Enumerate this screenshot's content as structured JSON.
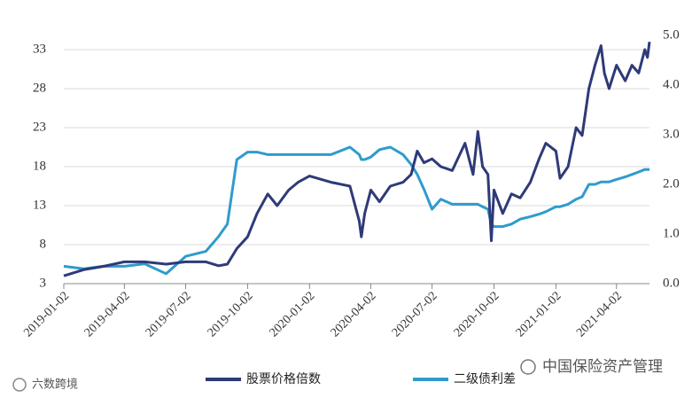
{
  "chart_data": {
    "type": "line",
    "x": [
      "2019-01-02",
      "2019-02-01",
      "2019-03-01",
      "2019-04-02",
      "2019-05-02",
      "2019-06-03",
      "2019-07-02",
      "2019-08-01",
      "2019-08-20",
      "2019-09-02",
      "2019-09-16",
      "2019-10-02",
      "2019-10-16",
      "2019-11-01",
      "2019-11-15",
      "2019-12-02",
      "2019-12-16",
      "2020-01-02",
      "2020-02-03",
      "2020-03-02",
      "2020-03-16",
      "2020-03-19",
      "2020-03-24",
      "2020-04-02",
      "2020-04-15",
      "2020-05-01",
      "2020-05-20",
      "2020-06-01",
      "2020-06-10",
      "2020-06-20",
      "2020-07-02",
      "2020-07-15",
      "2020-08-01",
      "2020-08-20",
      "2020-09-01",
      "2020-09-08",
      "2020-09-15",
      "2020-09-23",
      "2020-09-28",
      "2020-10-02",
      "2020-10-15",
      "2020-10-28",
      "2020-11-10",
      "2020-11-25",
      "2020-12-08",
      "2020-12-18",
      "2021-01-02",
      "2021-01-08",
      "2021-01-20",
      "2021-02-01",
      "2021-02-10",
      "2021-02-20",
      "2021-03-01",
      "2021-03-10",
      "2021-03-15",
      "2021-03-22",
      "2021-04-02",
      "2021-04-15",
      "2021-04-25",
      "2021-05-05",
      "2021-05-14",
      "2021-05-18",
      "2021-05-21"
    ],
    "series": [
      {
        "name": "股票价格倍数",
        "color": "#2e3a78",
        "values": [
          4,
          4.8,
          5.2,
          5.8,
          5.8,
          5.5,
          5.8,
          5.8,
          5.3,
          5.5,
          7.5,
          9,
          12,
          14.5,
          13,
          15,
          16,
          16.8,
          16,
          15.5,
          11,
          9,
          12,
          15,
          13.5,
          15.5,
          16,
          17,
          20,
          18.5,
          19,
          18,
          17.5,
          21,
          17,
          22.5,
          18,
          17,
          8.5,
          15,
          12,
          14.5,
          14,
          16,
          19,
          21,
          20,
          16.5,
          18,
          23,
          22,
          28,
          31,
          33.5,
          30,
          28,
          31,
          29,
          31,
          30,
          33,
          32,
          34
        ]
      },
      {
        "name": "二级债利差",
        "color": "#2f9bcc",
        "axis": "y2",
        "values": [
          0.35,
          0.3,
          0.35,
          0.35,
          0.4,
          0.2,
          0.55,
          0.65,
          0.95,
          1.2,
          2.5,
          2.65,
          2.65,
          2.6,
          2.6,
          2.6,
          2.6,
          2.6,
          2.6,
          2.75,
          2.6,
          2.5,
          2.5,
          2.55,
          2.7,
          2.75,
          2.6,
          2.4,
          2.2,
          1.9,
          1.5,
          1.7,
          1.6,
          1.6,
          1.6,
          1.6,
          1.55,
          1.5,
          1.2,
          1.15,
          1.15,
          1.2,
          1.3,
          1.35,
          1.4,
          1.45,
          1.55,
          1.55,
          1.6,
          1.7,
          1.75,
          2,
          2,
          2.05,
          2.05,
          2.05,
          2.1,
          2.15,
          2.2,
          2.25,
          2.3,
          2.3,
          2.3
        ]
      }
    ],
    "xlim": [
      "2019-01-02",
      "2021-05-21"
    ],
    "xticks": [
      "2019-01-02",
      "2019-04-02",
      "2019-07-02",
      "2019-10-02",
      "2020-01-02",
      "2020-04-02",
      "2020-07-02",
      "2020-10-02",
      "2021-01-02",
      "2021-04-02"
    ],
    "ylim": [
      3,
      34.8
    ],
    "yticks": [
      3,
      8,
      13,
      18,
      23,
      28,
      33
    ],
    "y2lim": [
      0,
      5
    ],
    "y2ticks": [
      {
        "value": 0,
        "label": "0.0"
      },
      {
        "value": 1,
        "label": "1.0"
      },
      {
        "value": 2,
        "label": "2.0"
      },
      {
        "value": 3,
        "label": "3.0"
      },
      {
        "value": 4,
        "label": "4.0"
      },
      {
        "value": 5,
        "label": "5.0"
      }
    ],
    "grid": true,
    "legend": "bottom",
    "annotations": [
      "中国保险资产管理",
      "六数跨境"
    ]
  }
}
